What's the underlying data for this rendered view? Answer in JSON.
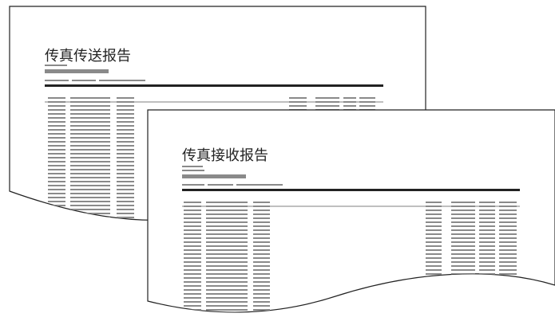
{
  "documents": [
    {
      "title": "传真传送报告"
    },
    {
      "title": "传真接收报告"
    }
  ]
}
